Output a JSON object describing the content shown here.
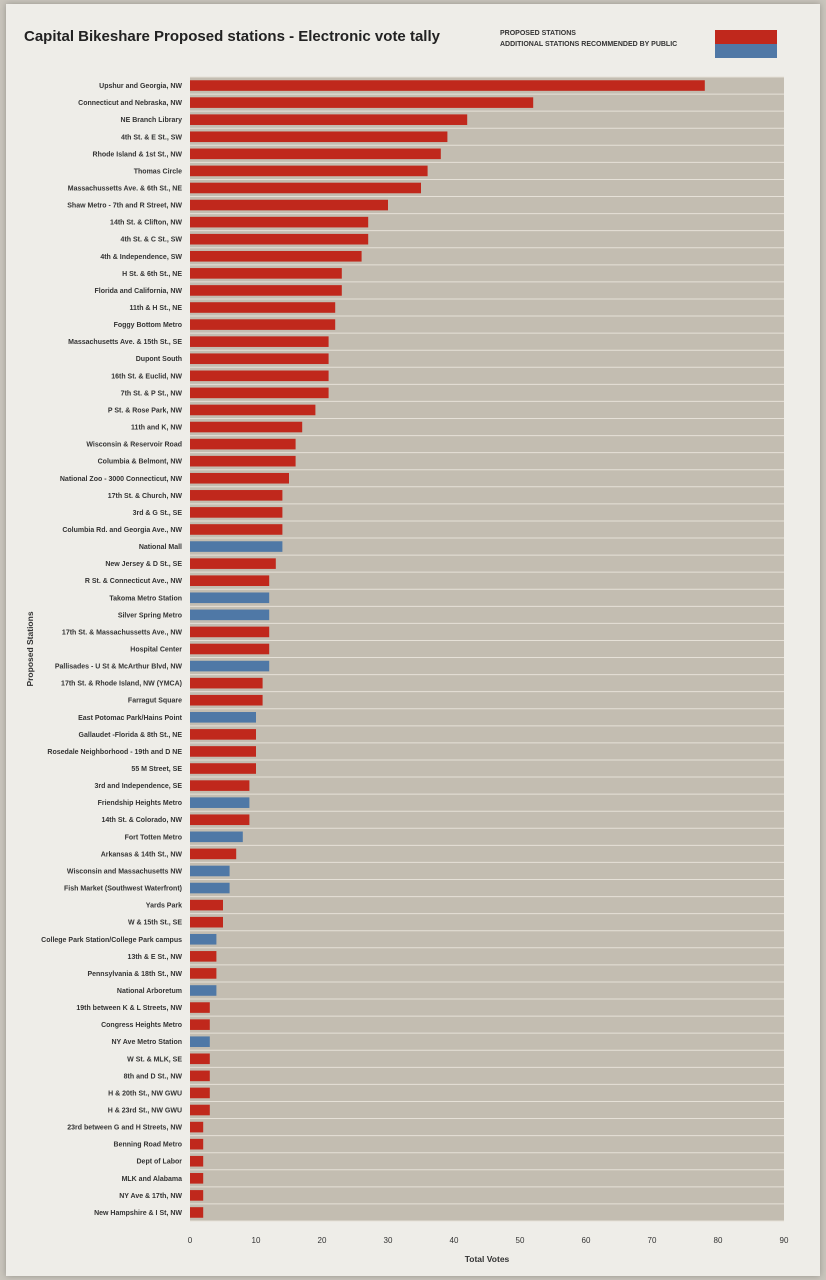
{
  "title": "Capital Bikeshare Proposed stations - Electronic vote tally",
  "legend": {
    "proposed": "PROPOSED STATIONS",
    "additional": "ADDITIONAL STATIONS RECOMMENDED BY PUBLIC"
  },
  "colors": {
    "proposed": "#c0281c",
    "additional": "#4f78a6",
    "plot_bg": "#c3bdb1",
    "grid": "#e6e1d8"
  },
  "chart_data": {
    "type": "bar",
    "orientation": "horizontal",
    "title": "Capital Bikeshare Proposed stations - Electronic vote tally",
    "xlabel": "Total Votes",
    "ylabel": "Proposed Stations",
    "xlim": [
      0,
      90
    ],
    "xticks": [
      0,
      10,
      20,
      30,
      40,
      50,
      60,
      70,
      80,
      90
    ],
    "legend_position": "top-right",
    "series": [
      {
        "name": "PROPOSED STATIONS",
        "color": "#c0281c"
      },
      {
        "name": "ADDITIONAL STATIONS RECOMMENDED BY PUBLIC",
        "color": "#4f78a6"
      }
    ],
    "categories": [
      "Upshur and Georgia, NW",
      "Connecticut and Nebraska, NW",
      "NE Branch Library",
      "4th St. & E St., SW",
      "Rhode Island & 1st St., NW",
      "Thomas Circle",
      "Massachussetts Ave. & 6th St., NE",
      "Shaw Metro - 7th and R Street, NW",
      "14th St. & Clifton, NW",
      "4th St. & C St., SW",
      "4th & Independence, SW",
      "H St. & 6th St., NE",
      "Florida and California, NW",
      "11th & H St., NE",
      "Foggy Bottom Metro",
      "Massachusetts Ave. & 15th St., SE",
      "Dupont South",
      "16th St. & Euclid, NW",
      "7th St. & P St., NW",
      "P St. & Rose Park, NW",
      "11th and K, NW",
      "Wisconsin & Reservoir Road",
      "Columbia & Belmont, NW",
      "National Zoo - 3000 Connecticut, NW",
      "17th St. & Church, NW",
      "3rd & G St., SE",
      "Columbia Rd. and Georgia Ave., NW",
      "National Mall",
      "New Jersey & D St., SE",
      "R St. & Connecticut Ave., NW",
      "Takoma Metro Station",
      "Silver Spring Metro",
      "17th St. & Massachussetts Ave., NW",
      "Hospital Center",
      "Pallisades - U St & McArthur Blvd, NW",
      "17th St. & Rhode Island, NW (YMCA)",
      "Farragut Square",
      "East Potomac Park/Hains Point",
      "Gallaudet -Florida & 8th St., NE",
      "Rosedale Neighborhood - 19th and D NE",
      "55 M Street, SE",
      "3rd and Independence, SE",
      "Friendship Heights Metro",
      "14th St. & Colorado, NW",
      "Fort Totten Metro",
      "Arkansas & 14th St., NW",
      "Wisconsin and Massachusetts NW",
      "Fish Market (Southwest Waterfront)",
      "Yards Park",
      "W & 15th St., SE",
      "College Park Station/College Park campus",
      "13th & E St., NW",
      "Pennsylvania & 18th St., NW",
      "National Arboretum",
      "19th between K & L Streets, NW",
      "Congress Heights Metro",
      "NY Ave Metro Station",
      "W St. & MLK, SE",
      "8th and D St., NW",
      "H & 20th St., NW GWU",
      "H & 23rd St., NW GWU",
      "23rd between G and H Streets, NW",
      "Benning Road Metro",
      "Dept of Labor",
      "MLK and Alabama",
      "NY Ave & 17th, NW",
      "New Hampshire & I St, NW"
    ],
    "values": [
      78,
      52,
      42,
      39,
      38,
      36,
      35,
      30,
      27,
      27,
      26,
      23,
      23,
      22,
      22,
      21,
      21,
      21,
      21,
      19,
      17,
      16,
      16,
      15,
      14,
      14,
      14,
      14,
      13,
      12,
      12,
      12,
      12,
      12,
      12,
      11,
      11,
      10,
      10,
      10,
      10,
      9,
      9,
      9,
      8,
      7,
      6,
      6,
      5,
      5,
      4,
      4,
      4,
      4,
      3,
      3,
      3,
      3,
      3,
      3,
      3,
      2,
      2,
      2,
      2,
      2,
      2
    ],
    "groups": [
      "proposed",
      "proposed",
      "proposed",
      "proposed",
      "proposed",
      "proposed",
      "proposed",
      "proposed",
      "proposed",
      "proposed",
      "proposed",
      "proposed",
      "proposed",
      "proposed",
      "proposed",
      "proposed",
      "proposed",
      "proposed",
      "proposed",
      "proposed",
      "proposed",
      "proposed",
      "proposed",
      "proposed",
      "proposed",
      "proposed",
      "proposed",
      "additional",
      "proposed",
      "proposed",
      "additional",
      "additional",
      "proposed",
      "proposed",
      "additional",
      "proposed",
      "proposed",
      "additional",
      "proposed",
      "proposed",
      "proposed",
      "proposed",
      "additional",
      "proposed",
      "additional",
      "proposed",
      "additional",
      "additional",
      "proposed",
      "proposed",
      "additional",
      "proposed",
      "proposed",
      "additional",
      "proposed",
      "proposed",
      "additional",
      "proposed",
      "proposed",
      "proposed",
      "proposed",
      "proposed",
      "proposed",
      "proposed",
      "proposed",
      "proposed",
      "proposed"
    ]
  }
}
